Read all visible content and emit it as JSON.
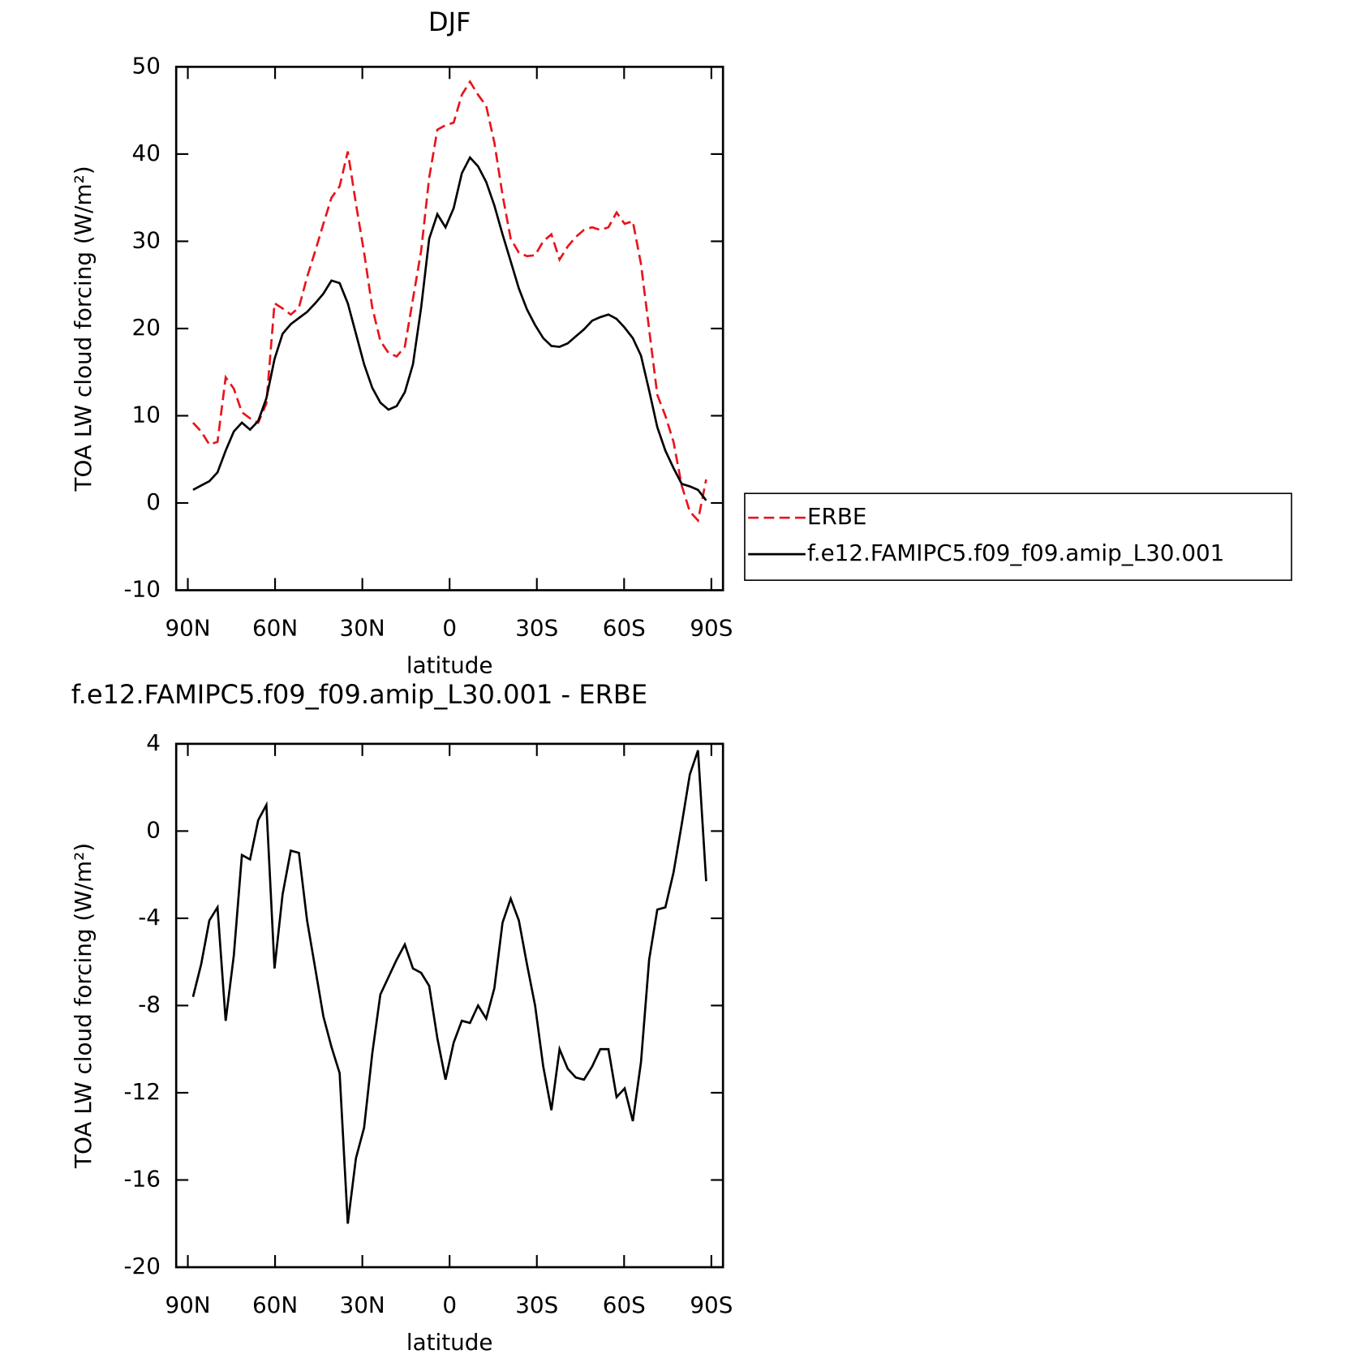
{
  "chart_data": [
    {
      "type": "line",
      "title": "DJF",
      "ylabel": "TOA LW cloud forcing (W/m²)",
      "xlabel": "latitude",
      "x": [
        88.2,
        85.4,
        82.6,
        79.8,
        77.0,
        74.2,
        71.4,
        68.6,
        65.8,
        63.0,
        60.2,
        57.4,
        54.6,
        51.8,
        49.0,
        46.2,
        43.4,
        40.6,
        37.8,
        35.0,
        32.2,
        29.4,
        26.6,
        23.8,
        21.0,
        18.2,
        15.4,
        12.6,
        9.8,
        7.0,
        4.2,
        1.4,
        -1.4,
        -4.2,
        -7.0,
        -9.8,
        -12.6,
        -15.4,
        -18.2,
        -21.0,
        -23.8,
        -26.6,
        -29.4,
        -32.2,
        -35.0,
        -37.8,
        -40.6,
        -43.4,
        -46.2,
        -49.0,
        -51.8,
        -54.6,
        -57.4,
        -60.2,
        -63.0,
        -65.8,
        -68.6,
        -71.4,
        -74.2,
        -77.0,
        -79.8,
        -82.6,
        -85.4,
        -88.2
      ],
      "series": [
        {
          "name": "ERBE",
          "color": "#e8141c",
          "style": "dashed",
          "values": [
            9.2,
            8.2,
            6.7,
            7,
            14.4,
            13.1,
            10.4,
            9.7,
            9.2,
            11.4,
            22.9,
            22.3,
            21.6,
            22.4,
            25.9,
            28.9,
            32,
            35,
            36.3,
            40.3,
            34.3,
            28.7,
            22.4,
            18.6,
            17.2,
            16.8,
            17.9,
            23.4,
            28.9,
            37.3,
            42.8,
            43.3,
            43.6,
            46.8,
            48.3,
            46.8,
            45.5,
            41.3,
            35.3,
            30.3,
            28.7,
            28.3,
            28.4,
            30,
            30.8,
            27.9,
            29.4,
            30.5,
            31.3,
            31.6,
            31.3,
            31.6,
            33.3,
            32,
            32.3,
            27.4,
            19.9,
            12.4,
            10,
            7,
            2,
            -1,
            -2,
            2.7
          ]
        },
        {
          "name": "f.e12.FAMIPC5.f09_f09.amip_L30.001",
          "color": "#000000",
          "style": "solid",
          "values": [
            1.5,
            2,
            2.5,
            3.5,
            6,
            8.2,
            9.2,
            8.4,
            9.4,
            12,
            16.5,
            19.4,
            20.5,
            21.2,
            21.9,
            22.9,
            24,
            25.5,
            25.2,
            22.9,
            19.4,
            15.9,
            13.2,
            11.5,
            10.7,
            11.1,
            12.7,
            15.9,
            22.4,
            30.3,
            33.1,
            31.6,
            33.8,
            37.8,
            39.6,
            38.6,
            36.8,
            34.1,
            30.8,
            27.7,
            24.6,
            22.2,
            20.4,
            18.9,
            18,
            17.9,
            18.3,
            19.1,
            19.9,
            20.9,
            21.3,
            21.6,
            21.1,
            20.1,
            18.9,
            16.9,
            12.9,
            8.7,
            6,
            4,
            2.2,
            1.9,
            1.5,
            0.3
          ]
        }
      ],
      "xlim": [
        94,
        -94
      ],
      "xticks": [
        {
          "value": 90,
          "label": "90N"
        },
        {
          "value": 60,
          "label": "60N"
        },
        {
          "value": 30,
          "label": "30N"
        },
        0,
        {
          "value": -30,
          "label": "30S"
        },
        {
          "value": -60,
          "label": "60S"
        },
        {
          "value": -90,
          "label": "90S"
        }
      ],
      "ylim": [
        -10,
        50
      ],
      "yticks": [
        -10,
        0,
        10,
        20,
        30,
        40,
        50
      ],
      "legend": "right"
    },
    {
      "type": "line",
      "title": "f.e12.FAMIPC5.f09_f09.amip_L30.001 - ERBE",
      "ylabel": "TOA LW cloud forcing (W/m²)",
      "xlabel": "latitude",
      "x": [
        88.2,
        85.4,
        82.6,
        79.8,
        77.0,
        74.2,
        71.4,
        68.6,
        65.8,
        63.0,
        60.2,
        57.4,
        54.6,
        51.8,
        49.0,
        46.2,
        43.4,
        40.6,
        37.8,
        35.0,
        32.2,
        29.4,
        26.6,
        23.8,
        21.0,
        18.2,
        15.4,
        12.6,
        9.8,
        7.0,
        4.2,
        1.4,
        -1.4,
        -4.2,
        -7.0,
        -9.8,
        -12.6,
        -15.4,
        -18.2,
        -21.0,
        -23.8,
        -26.6,
        -29.4,
        -32.2,
        -35.0,
        -37.8,
        -40.6,
        -43.4,
        -46.2,
        -49.0,
        -51.8,
        -54.6,
        -57.4,
        -60.2,
        -63.0,
        -65.8,
        -68.6,
        -71.4,
        -74.2,
        -77.0,
        -79.8,
        -82.6,
        -85.4,
        -88.2
      ],
      "color": "#000000",
      "values": [
        -7.6,
        -6.1,
        -4.1,
        -3.5,
        -8.7,
        -5.7,
        -1.1,
        -1.3,
        0.5,
        1.2,
        -6.3,
        -2.9,
        -0.9,
        -1,
        -4.1,
        -6.3,
        -8.5,
        -9.9,
        -11.1,
        -18,
        -15,
        -13.6,
        -10.2,
        -7.5,
        -6.7,
        -5.9,
        -5.2,
        -6.3,
        -6.5,
        -7.1,
        -9.5,
        -11.4,
        -9.7,
        -8.7,
        -8.8,
        -8,
        -8.6,
        -7.2,
        -4.2,
        -3.1,
        -4.1,
        -6.1,
        -8,
        -10.8,
        -12.8,
        -10,
        -10.9,
        -11.3,
        -11.4,
        -10.8,
        -10,
        -10,
        -12.2,
        -11.8,
        -13.3,
        -10.6,
        -5.9,
        -3.6,
        -3.5,
        -1.9,
        0.3,
        2.6,
        3.7,
        -2.3
      ],
      "xlim": [
        94,
        -94
      ],
      "xticks": [
        {
          "value": 90,
          "label": "90N"
        },
        {
          "value": 60,
          "label": "60N"
        },
        {
          "value": 30,
          "label": "30N"
        },
        0,
        {
          "value": -30,
          "label": "30S"
        },
        {
          "value": -60,
          "label": "60S"
        },
        {
          "value": -90,
          "label": "90S"
        }
      ],
      "ylim": [
        -20,
        4
      ],
      "yticks": [
        -20,
        -16,
        -12,
        -8,
        -4,
        0,
        4
      ]
    }
  ]
}
